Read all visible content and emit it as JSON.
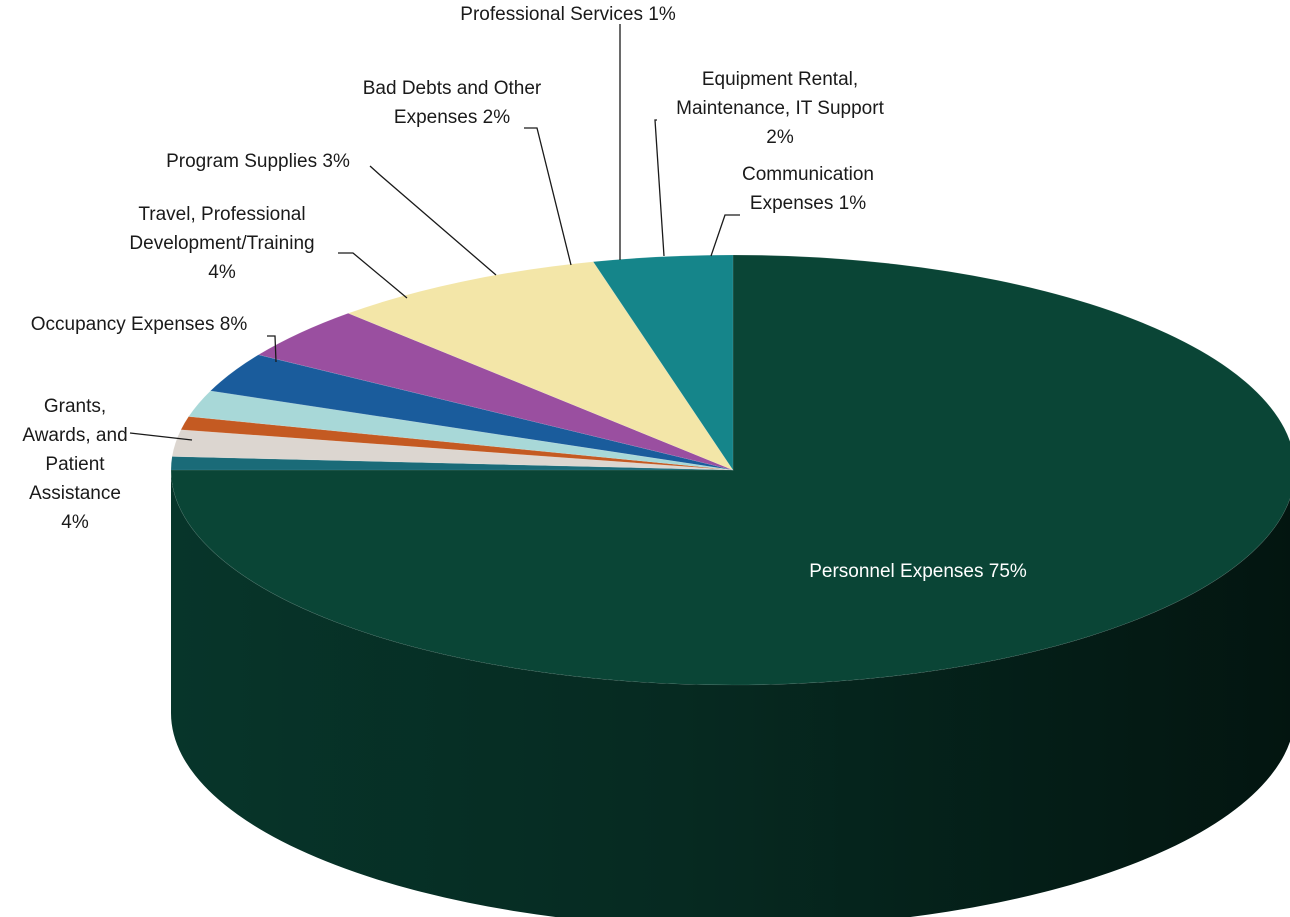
{
  "chart_data": {
    "type": "pie",
    "three_d": true,
    "title": "",
    "slices": [
      {
        "label": [
          "Personnel Expenses  75%"
        ],
        "value": 75,
        "color": "#0a4536"
      },
      {
        "label": [
          "Communication",
          "Expenses  1%"
        ],
        "value": 1,
        "color": "#1a6b78"
      },
      {
        "label": [
          "Equipment Rental,",
          "Maintenance, IT Support",
          "2%"
        ],
        "value": 2,
        "color": "#dcd6d0"
      },
      {
        "label": [
          "Professional Services  1%"
        ],
        "value": 1,
        "color": "#c45a22"
      },
      {
        "label": [
          "Bad Debts and Other",
          "Expenses  2%"
        ],
        "value": 2,
        "color": "#a8d8d8"
      },
      {
        "label": [
          "Program Supplies  3%"
        ],
        "value": 3,
        "color": "#1a5c9c"
      },
      {
        "label": [
          "Travel, Professional",
          "Development/Training",
          "4%"
        ],
        "value": 4,
        "color": "#9a4fa0"
      },
      {
        "label": [
          "Occupancy Expenses  8%"
        ],
        "value": 8,
        "color": "#f3e6a8"
      },
      {
        "label": [
          "Grants,",
          "Awards, and",
          "Patient",
          "Assistance",
          "4%"
        ],
        "value": 4,
        "color": "#15858a"
      }
    ]
  }
}
